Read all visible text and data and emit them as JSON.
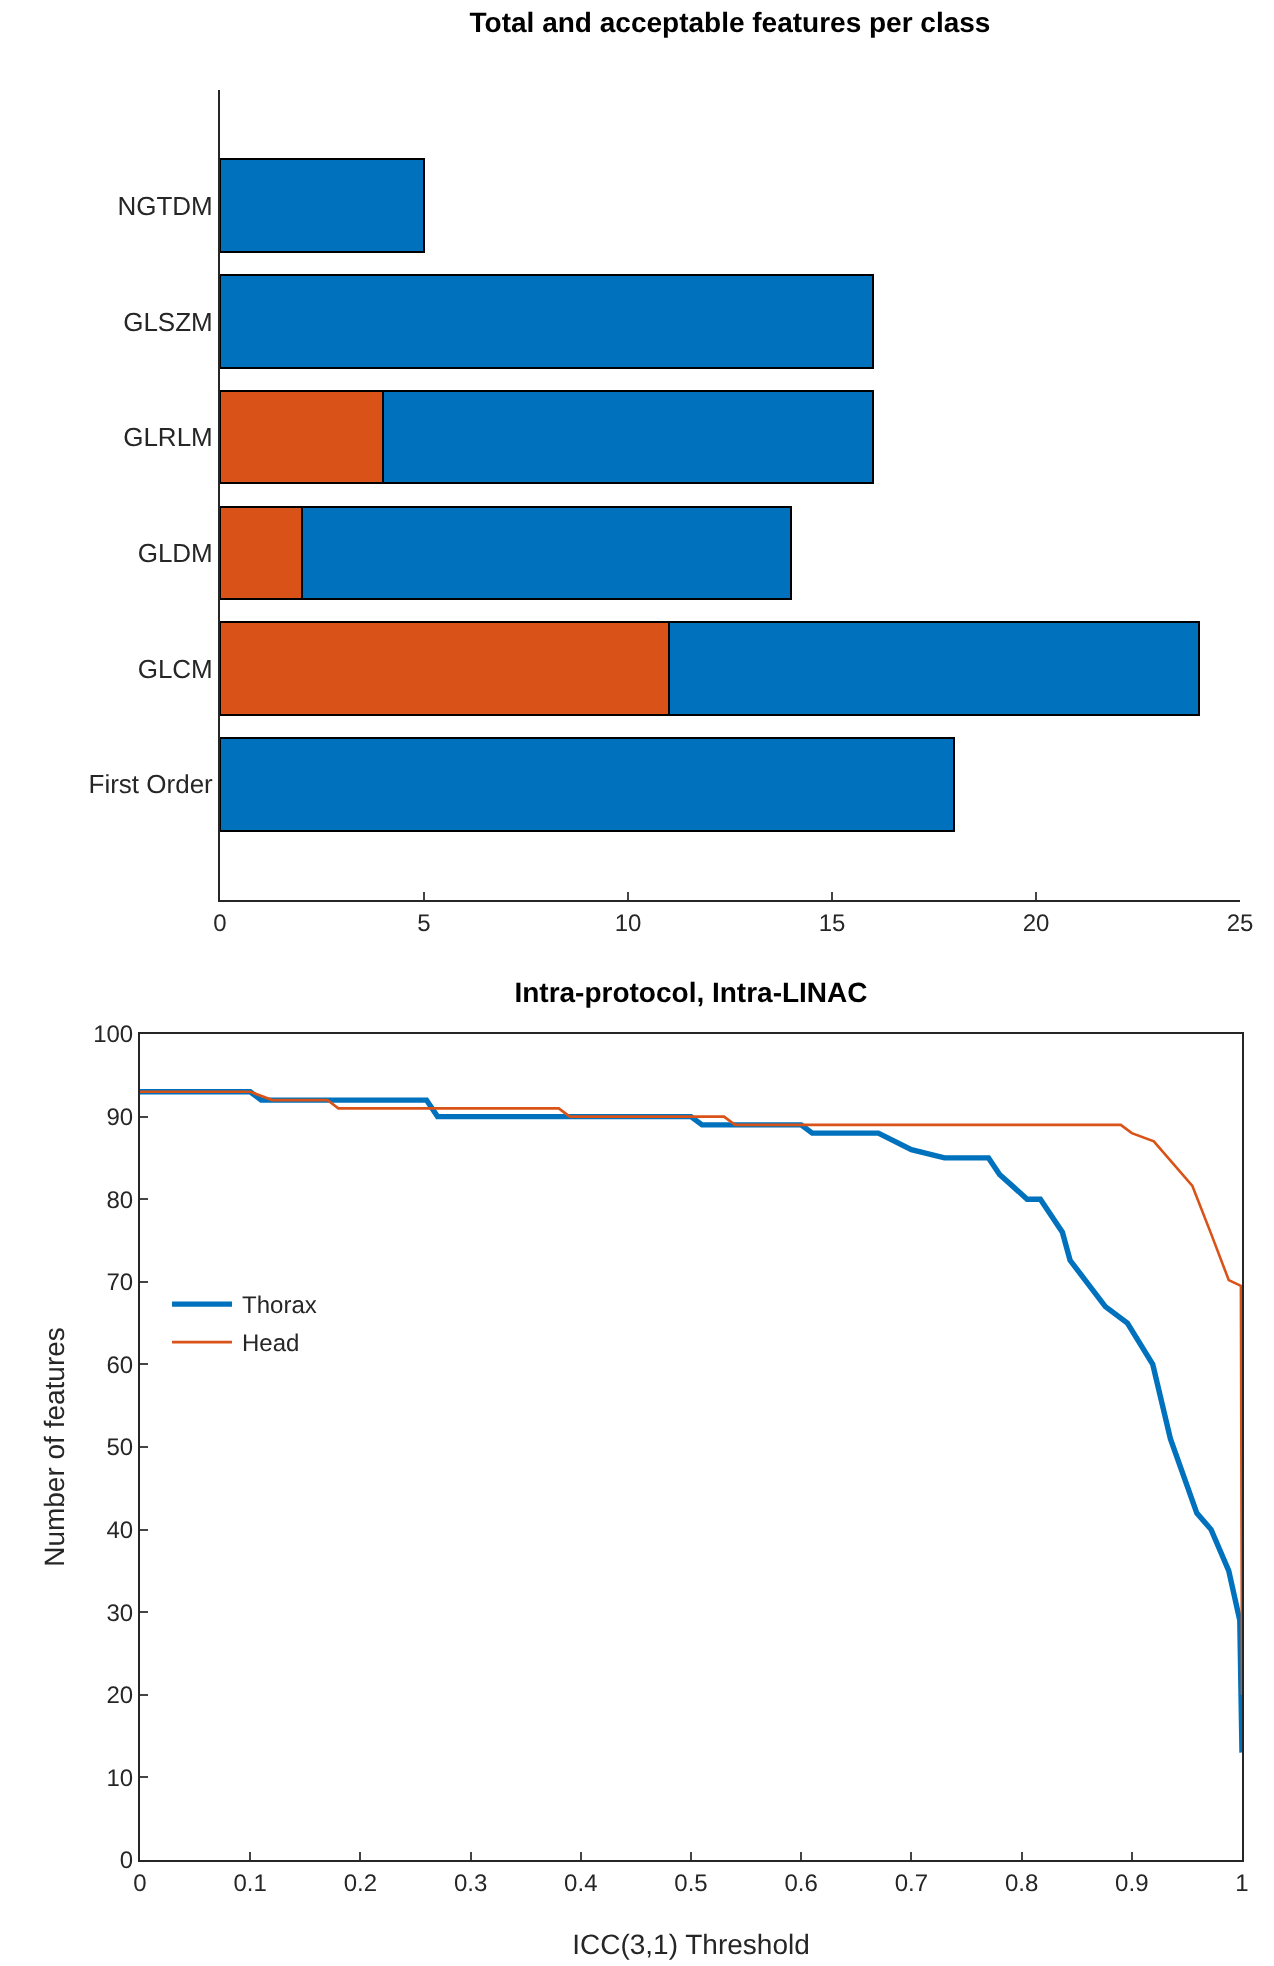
{
  "chart_data": [
    {
      "type": "bar",
      "title": "Total and acceptable features per class",
      "orientation": "horizontal",
      "stacked": true,
      "categories": [
        "NGTDM",
        "GLSZM",
        "GLRLM",
        "GLDM",
        "GLCM",
        "First Order"
      ],
      "series": [
        {
          "color": "#d95319",
          "values": [
            0,
            0,
            4,
            2,
            11,
            0
          ]
        },
        {
          "color": "#0072bd",
          "values": [
            5,
            16,
            12,
            12,
            13,
            18
          ]
        }
      ],
      "xlim": [
        0,
        25
      ],
      "xticks": [
        0,
        5,
        10,
        15,
        20,
        25
      ]
    },
    {
      "type": "line",
      "title": "Intra-protocol, Intra-LINAC",
      "xlabel": "ICC(3,1) Threshold",
      "ylabel": "Number of features",
      "legend": "left",
      "series": [
        {
          "name": "Thorax",
          "color": "#0072bd",
          "x": [
            0,
            0.1,
            0.11,
            0.26,
            0.27,
            0.5,
            0.51,
            0.6,
            0.61,
            0.67,
            0.7,
            0.73,
            0.77,
            0.78,
            0.805,
            0.817,
            0.837,
            0.844,
            0.876,
            0.896,
            0.919,
            0.935,
            0.959,
            0.972,
            0.988,
            0.998,
            1.0
          ],
          "values": [
            93,
            93,
            92,
            92,
            90,
            90,
            89,
            89,
            88,
            88,
            86,
            85,
            85,
            83,
            80,
            80,
            76,
            72.6,
            67,
            65,
            60,
            51,
            42,
            40,
            35,
            29,
            13
          ]
        },
        {
          "name": "Head",
          "color": "#d95319",
          "x": [
            0,
            0.1,
            0.12,
            0.17,
            0.18,
            0.38,
            0.39,
            0.53,
            0.54,
            0.89,
            0.9,
            0.92,
            0.955,
            0.972,
            0.988,
            0.999,
            1.0
          ],
          "values": [
            93,
            93,
            92,
            92,
            91,
            91,
            90,
            90,
            89,
            89,
            88,
            87,
            81.6,
            75.8,
            70.2,
            69.5,
            20
          ]
        }
      ],
      "xlim": [
        0,
        1
      ],
      "xticks": [
        0,
        0.1,
        0.2,
        0.3,
        0.4,
        0.5,
        0.6,
        0.7,
        0.8,
        0.9,
        1
      ],
      "ylim": [
        0,
        100
      ],
      "yticks": [
        0,
        10,
        20,
        30,
        40,
        50,
        60,
        70,
        80,
        90,
        100
      ]
    }
  ]
}
